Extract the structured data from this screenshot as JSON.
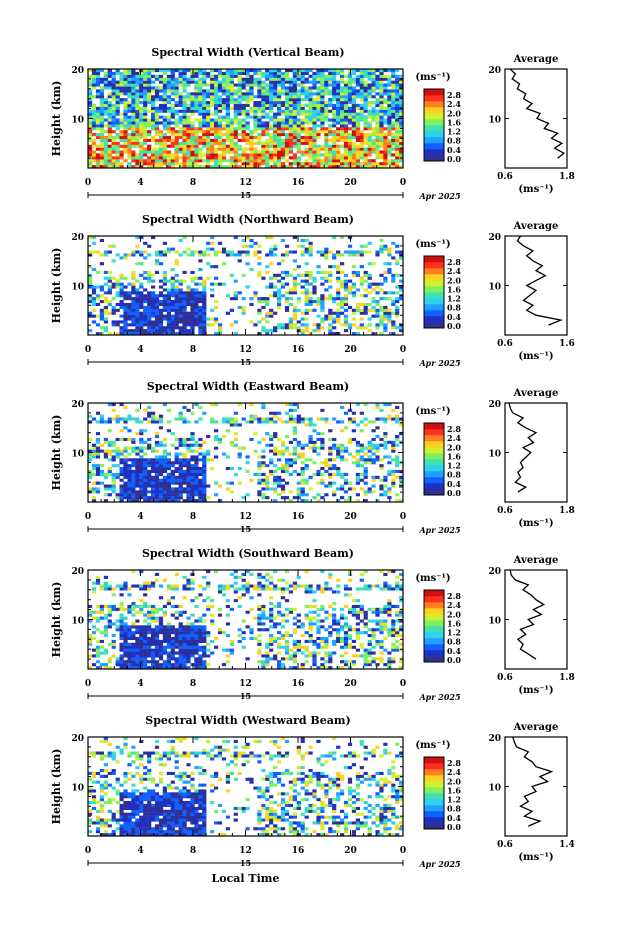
{
  "chart_data": [
    {
      "type": "heatmap",
      "title": "Spectral Width (Vertical Beam)",
      "ylabel": "Height (km)",
      "ylim": [
        0,
        20
      ],
      "yticks": [
        "20",
        "10"
      ],
      "xlim": [
        0,
        24
      ],
      "xticks": [
        "0",
        "4",
        "8",
        "12",
        "16",
        "20",
        "0"
      ],
      "day_label": "15",
      "date_label": "Apr 2025",
      "colorbar": {
        "unit": "(ms⁻¹)",
        "ticks": [
          "2.8",
          "2.4",
          "2.0",
          "1.6",
          "1.2",
          "0.8",
          "0.4",
          "0.0"
        ]
      },
      "average": {
        "title": "Average",
        "xlabel": "(ms⁻¹)",
        "xticks": [
          "0.6",
          "1.8"
        ],
        "xlim": [
          0.6,
          1.8
        ],
        "yticks": [
          "20",
          "10"
        ],
        "profile": [
          [
            1.62,
            2
          ],
          [
            1.74,
            3
          ],
          [
            1.56,
            4
          ],
          [
            1.7,
            5
          ],
          [
            1.5,
            6
          ],
          [
            1.62,
            7
          ],
          [
            1.36,
            8
          ],
          [
            1.44,
            9
          ],
          [
            1.22,
            10
          ],
          [
            1.28,
            11
          ],
          [
            1.02,
            12
          ],
          [
            1.12,
            13
          ],
          [
            0.96,
            14
          ],
          [
            1.0,
            15
          ],
          [
            0.84,
            16
          ],
          [
            0.88,
            17
          ],
          [
            0.74,
            18
          ],
          [
            0.8,
            19
          ],
          [
            0.7,
            20
          ]
        ]
      }
    },
    {
      "type": "heatmap",
      "title": "Spectral Width (Northward Beam)",
      "ylabel": "Height (km)",
      "ylim": [
        0,
        20
      ],
      "yticks": [
        "20",
        "10"
      ],
      "xlim": [
        0,
        24
      ],
      "xticks": [
        "0",
        "4",
        "8",
        "12",
        "16",
        "20",
        "0"
      ],
      "day_label": "15",
      "date_label": "Apr 2025",
      "colorbar": {
        "unit": "(ms⁻¹)",
        "ticks": [
          "2.8",
          "2.4",
          "2.0",
          "1.6",
          "1.2",
          "0.8",
          "0.4",
          "0.0"
        ]
      },
      "average": {
        "title": "Average",
        "xlabel": "(ms⁻¹)",
        "xticks": [
          "0.6",
          "1.6"
        ],
        "xlim": [
          0.6,
          1.6
        ],
        "yticks": [
          "20",
          "10"
        ],
        "profile": [
          [
            1.3,
            2
          ],
          [
            1.5,
            3
          ],
          [
            1.1,
            4
          ],
          [
            0.95,
            5
          ],
          [
            1.05,
            6
          ],
          [
            0.9,
            7
          ],
          [
            1.0,
            8
          ],
          [
            1.1,
            9
          ],
          [
            0.95,
            10
          ],
          [
            1.1,
            11
          ],
          [
            1.25,
            12
          ],
          [
            1.1,
            13
          ],
          [
            1.2,
            14
          ],
          [
            1.05,
            15
          ],
          [
            0.95,
            16
          ],
          [
            1.05,
            17
          ],
          [
            0.9,
            18
          ],
          [
            0.8,
            19
          ],
          [
            0.85,
            20
          ]
        ]
      }
    },
    {
      "type": "heatmap",
      "title": "Spectral Width (Eastward Beam)",
      "ylabel": "Height (km)",
      "ylim": [
        0,
        20
      ],
      "yticks": [
        "20",
        "10"
      ],
      "xlim": [
        0,
        24
      ],
      "xticks": [
        "0",
        "4",
        "8",
        "12",
        "16",
        "20",
        "0"
      ],
      "day_label": "15",
      "date_label": "Apr 2025",
      "colorbar": {
        "unit": "(ms⁻¹)",
        "ticks": [
          "2.8",
          "2.4",
          "2.0",
          "1.6",
          "1.2",
          "0.8",
          "0.4",
          "0.0"
        ]
      },
      "average": {
        "title": "Average",
        "xlabel": "(ms⁻¹)",
        "xticks": [
          "0.6",
          "1.8"
        ],
        "xlim": [
          0.6,
          1.8
        ],
        "yticks": [
          "20",
          "10"
        ],
        "profile": [
          [
            0.85,
            2
          ],
          [
            1.0,
            3
          ],
          [
            0.8,
            4
          ],
          [
            0.9,
            5
          ],
          [
            0.85,
            6
          ],
          [
            0.95,
            7
          ],
          [
            0.9,
            8
          ],
          [
            1.0,
            9
          ],
          [
            1.1,
            10
          ],
          [
            0.95,
            11
          ],
          [
            1.15,
            12
          ],
          [
            1.05,
            13
          ],
          [
            1.2,
            14
          ],
          [
            1.0,
            15
          ],
          [
            0.85,
            16
          ],
          [
            0.95,
            17
          ],
          [
            0.75,
            18
          ],
          [
            0.7,
            19
          ],
          [
            0.68,
            20
          ]
        ]
      }
    },
    {
      "type": "heatmap",
      "title": "Spectral Width (Southward Beam)",
      "ylabel": "Height (km)",
      "ylim": [
        0,
        20
      ],
      "yticks": [
        "20",
        "10"
      ],
      "xlim": [
        0,
        24
      ],
      "xticks": [
        "0",
        "4",
        "8",
        "12",
        "16",
        "20",
        "0"
      ],
      "day_label": "15",
      "date_label": "Apr 2025",
      "colorbar": {
        "unit": "(ms⁻¹)",
        "ticks": [
          "2.8",
          "2.4",
          "2.0",
          "1.6",
          "1.2",
          "0.8",
          "0.4",
          "0.0"
        ]
      },
      "average": {
        "title": "Average",
        "xlabel": "(ms⁻¹)",
        "xticks": [
          "0.6",
          "1.8"
        ],
        "xlim": [
          0.6,
          1.8
        ],
        "yticks": [
          "20",
          "10"
        ],
        "profile": [
          [
            1.2,
            2
          ],
          [
            1.05,
            3
          ],
          [
            0.9,
            4
          ],
          [
            0.95,
            5
          ],
          [
            0.85,
            6
          ],
          [
            1.0,
            7
          ],
          [
            0.9,
            8
          ],
          [
            1.15,
            9
          ],
          [
            1.05,
            10
          ],
          [
            1.3,
            11
          ],
          [
            1.15,
            12
          ],
          [
            1.35,
            13
          ],
          [
            1.2,
            14
          ],
          [
            1.1,
            15
          ],
          [
            0.95,
            16
          ],
          [
            1.05,
            17
          ],
          [
            0.8,
            18
          ],
          [
            0.72,
            19
          ],
          [
            0.7,
            20
          ]
        ]
      }
    },
    {
      "type": "heatmap",
      "title": "Spectral Width (Westward Beam)",
      "ylabel": "Height (km)",
      "ylim": [
        0,
        20
      ],
      "yticks": [
        "20",
        "10"
      ],
      "xlim": [
        0,
        24
      ],
      "xticks": [
        "0",
        "4",
        "8",
        "12",
        "16",
        "20",
        "0"
      ],
      "day_label": "15",
      "date_label": "Apr 2025",
      "xlabel": "Local Time",
      "colorbar": {
        "unit": "(ms⁻¹)",
        "ticks": [
          "2.8",
          "2.4",
          "2.0",
          "1.6",
          "1.2",
          "0.8",
          "0.4",
          "0.0"
        ]
      },
      "average": {
        "title": "Average",
        "xlabel": "(ms⁻¹)",
        "xticks": [
          "0.6",
          "1.4"
        ],
        "xlim": [
          0.6,
          1.4
        ],
        "yticks": [
          "20",
          "10"
        ],
        "profile": [
          [
            0.9,
            2
          ],
          [
            1.05,
            3
          ],
          [
            0.85,
            4
          ],
          [
            0.95,
            5
          ],
          [
            0.8,
            6
          ],
          [
            0.9,
            7
          ],
          [
            0.85,
            8
          ],
          [
            1.0,
            9
          ],
          [
            0.95,
            10
          ],
          [
            1.15,
            11
          ],
          [
            1.05,
            12
          ],
          [
            1.2,
            13
          ],
          [
            1.0,
            14
          ],
          [
            0.95,
            15
          ],
          [
            0.85,
            16
          ],
          [
            0.9,
            17
          ],
          [
            0.75,
            18
          ],
          [
            0.72,
            19
          ],
          [
            0.7,
            20
          ]
        ]
      }
    }
  ]
}
